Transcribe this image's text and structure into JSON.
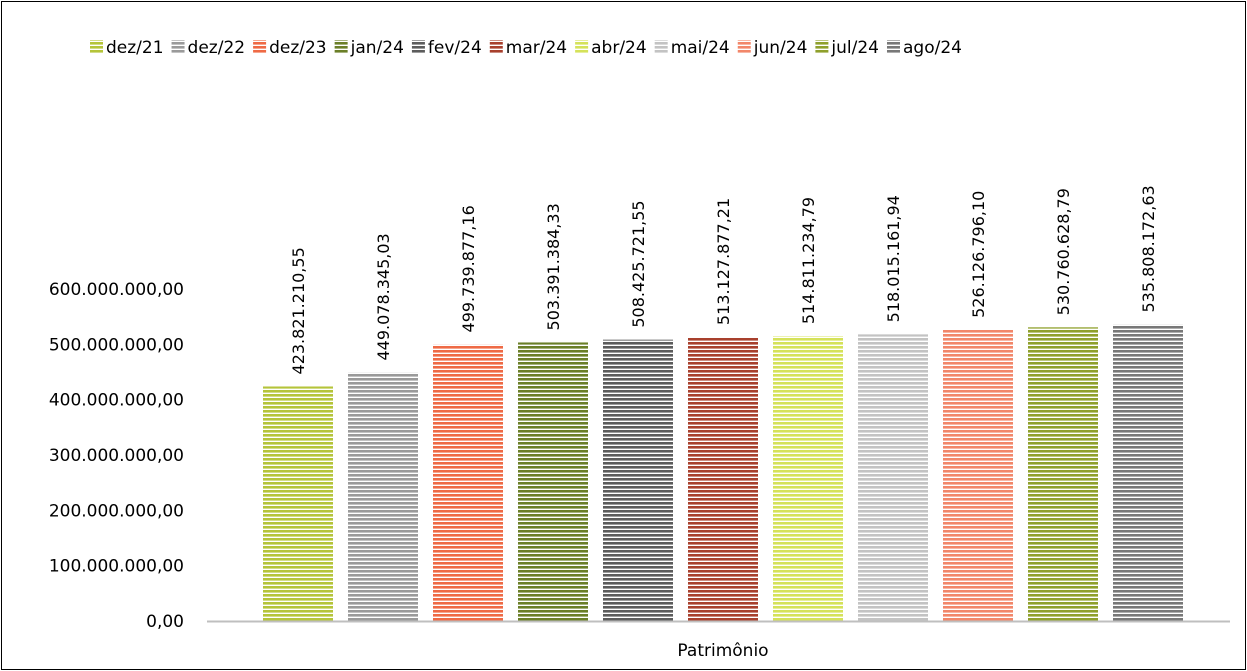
{
  "chart_data": {
    "type": "bar",
    "title": "",
    "xlabel": "",
    "ylabel": "",
    "categories": [
      "Patrimônio"
    ],
    "ylim": [
      0,
      600000000
    ],
    "yticks": [
      0,
      100000000,
      200000000,
      300000000,
      400000000,
      500000000,
      600000000
    ],
    "ytick_labels": [
      "0,00",
      "100.000.000,00",
      "200.000.000,00",
      "300.000.000,00",
      "400.000.000,00",
      "500.000.000,00",
      "600.000.000,00"
    ],
    "legend_position": "top",
    "grid": false,
    "series": [
      {
        "name": "dez/21",
        "values": [
          423821210.55
        ],
        "label": "423.821.210,55",
        "color": "#b5c43a"
      },
      {
        "name": "dez/22",
        "values": [
          449078345.03
        ],
        "label": "449.078.345,03",
        "color": "#9a9a9a"
      },
      {
        "name": "dez/23",
        "values": [
          499739877.16
        ],
        "label": "499.739.877,16",
        "color": "#ef6a45"
      },
      {
        "name": "jan/24",
        "values": [
          503391384.33
        ],
        "label": "503.391.384,33",
        "color": "#6b7f28"
      },
      {
        "name": "fev/24",
        "values": [
          508425721.55
        ],
        "label": "508.425.721,55",
        "color": "#5c5c5c"
      },
      {
        "name": "mar/24",
        "values": [
          513127877.21
        ],
        "label": "513.127.877,21",
        "color": "#a8402d"
      },
      {
        "name": "abr/24",
        "values": [
          514811234.79
        ],
        "label": "514.811.234,79",
        "color": "#d5e25a"
      },
      {
        "name": "mai/24",
        "values": [
          518015161.94
        ],
        "label": "518.015.161,94",
        "color": "#c3c3c3"
      },
      {
        "name": "jun/24",
        "values": [
          526126796.1
        ],
        "label": "526.126.796,10",
        "color": "#f2876a"
      },
      {
        "name": "jul/24",
        "values": [
          530760628.79
        ],
        "label": "530.760.628,79",
        "color": "#8fa02c"
      },
      {
        "name": "ago/24",
        "values": [
          535808172.63
        ],
        "label": "535.808.172,63",
        "color": "#787878"
      }
    ]
  }
}
